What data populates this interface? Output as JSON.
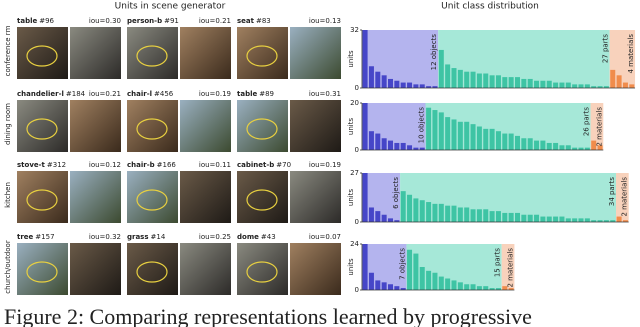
{
  "left": {
    "title": "Units in scene generator",
    "rows": [
      {
        "scene": "conference rm",
        "units": [
          {
            "name": "table",
            "id": "#96",
            "iou": "iou=0.30"
          },
          {
            "name": "person-b",
            "id": "#91",
            "iou": "iou=0.21"
          },
          {
            "name": "seat",
            "id": "#83",
            "iou": "iou=0.13"
          }
        ]
      },
      {
        "scene": "dining room",
        "units": [
          {
            "name": "chandelier-l",
            "id": "#184",
            "iou": "iou=0.21"
          },
          {
            "name": "chair-l",
            "id": "#456",
            "iou": "iou=0.19"
          },
          {
            "name": "table",
            "id": "#89",
            "iou": "iou=0.31"
          }
        ]
      },
      {
        "scene": "kitchen",
        "units": [
          {
            "name": "stove-t",
            "id": "#312",
            "iou": "iou=0.12"
          },
          {
            "name": "chair-b",
            "id": "#166",
            "iou": "iou=0.11"
          },
          {
            "name": "cabinet-b",
            "id": "#70",
            "iou": "iou=0.19"
          }
        ]
      },
      {
        "scene": "church/outdoor",
        "units": [
          {
            "name": "tree",
            "id": "#157",
            "iou": "iou=0.32"
          },
          {
            "name": "grass",
            "id": "#14",
            "iou": "iou=0.25"
          },
          {
            "name": "dome",
            "id": "#43",
            "iou": "iou=0.07"
          }
        ]
      }
    ]
  },
  "right": {
    "title": "Unit class distribution",
    "ylabel": "units",
    "colors": [
      {
        "bar": "#4646c8",
        "bg": "#b4b4ee"
      },
      {
        "bar": "#3ec4a4",
        "bg": "#a6e8d8"
      },
      {
        "bar": "#f08c4c",
        "bg": "#f8d2bc"
      }
    ],
    "charts": [
      {
        "ylim": [
          0,
          32
        ],
        "yticks": [
          0,
          32
        ],
        "groups": [
          {
            "label": "12 objects",
            "values": [
              32,
              12,
              9,
              7,
              5,
              4,
              3,
              3,
              2,
              2,
              1,
              1
            ]
          },
          {
            "label": "27 parts",
            "values": [
              21,
              13,
              11,
              10,
              9,
              9,
              8,
              8,
              7,
              7,
              6,
              6,
              6,
              5,
              5,
              4,
              4,
              4,
              3,
              3,
              3,
              2,
              2,
              2,
              1,
              1,
              1
            ]
          },
          {
            "label": "4 materials",
            "values": [
              10,
              7,
              3,
              2
            ]
          }
        ]
      },
      {
        "ylim": [
          0,
          20
        ],
        "yticks": [
          0,
          20
        ],
        "groups": [
          {
            "label": "10 objects",
            "values": [
              20,
              8,
              7,
              5,
              4,
              3,
              3,
              2,
              1,
              1
            ]
          },
          {
            "label": "26 parts",
            "values": [
              18,
              17,
              16,
              14,
              13,
              12,
              12,
              11,
              10,
              9,
              9,
              8,
              7,
              7,
              6,
              5,
              5,
              4,
              4,
              3,
              3,
              2,
              2,
              1,
              1,
              1
            ]
          },
          {
            "label": "2 materials",
            "values": [
              4,
              2
            ]
          }
        ]
      },
      {
        "ylim": [
          0,
          27
        ],
        "yticks": [
          0,
          27
        ],
        "groups": [
          {
            "label": "6 objects",
            "values": [
              27,
              8,
              6,
              4,
              2,
              1
            ]
          },
          {
            "label": "34 parts",
            "values": [
              17,
              15,
              13,
              12,
              11,
              10,
              10,
              9,
              9,
              8,
              8,
              7,
              7,
              7,
              6,
              6,
              5,
              5,
              5,
              4,
              4,
              4,
              3,
              3,
              3,
              3,
              2,
              2,
              2,
              2,
              1,
              1,
              1,
              1
            ]
          },
          {
            "label": "2 materials",
            "values": [
              3,
              1
            ]
          }
        ]
      },
      {
        "ylim": [
          0,
          24
        ],
        "yticks": [
          0,
          24
        ],
        "groups": [
          {
            "label": "7 objects",
            "values": [
              24,
              9,
              5,
              4,
              3,
              2,
              1
            ]
          },
          {
            "label": "15 parts",
            "values": [
              21,
              19,
              12,
              10,
              9,
              7,
              6,
              5,
              4,
              3,
              3,
              2,
              2,
              1,
              1
            ]
          },
          {
            "label": "2 materials",
            "values": [
              2,
              1
            ]
          }
        ]
      }
    ]
  },
  "caption": "Figure 2: Comparing representations learned by progressive"
}
